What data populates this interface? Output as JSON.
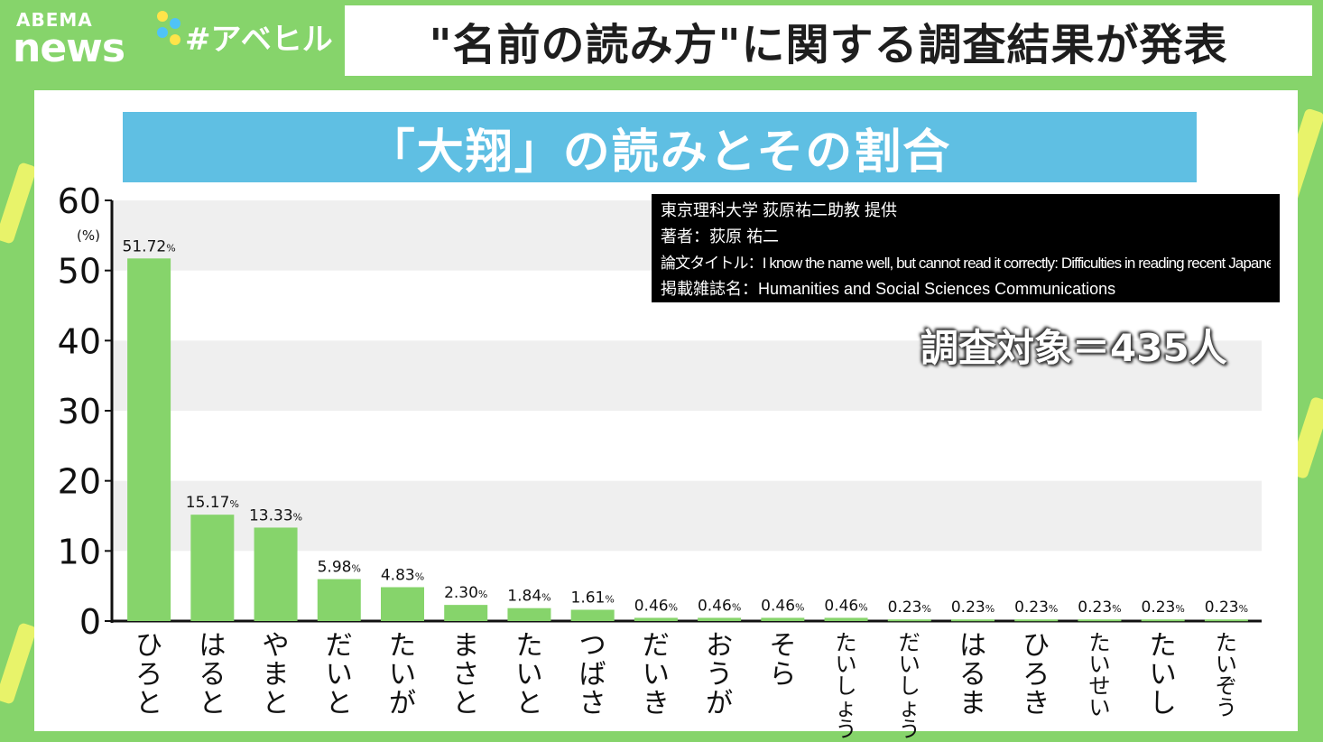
{
  "header": {
    "logo_top": "ABEMA",
    "logo_bottom": "news",
    "hashtag": "#アベヒル",
    "headline": "\"名前の読み方\"に関する調査結果が発表"
  },
  "colors": {
    "background": "#86d46b",
    "bar": "#86d46b",
    "title_bg": "#5fbfe3",
    "band": "#efefef"
  },
  "source_box": {
    "line1": "東京理科大学 荻原祐二助教 提供",
    "line2": "著者：荻原 祐二",
    "line3": "論文タイトル：I know the name well, but cannot read it correctly: Difficulties in reading recent Japanese names",
    "line4": "掲載雑誌名：Humanities and Social Sciences Communications"
  },
  "sample_note": "調査対象＝435人",
  "chart_data": {
    "type": "bar",
    "title": "「大翔」の読みとその割合",
    "xlabel": "",
    "ylabel": "(%)",
    "ylim": [
      0,
      60
    ],
    "yticks": [
      0,
      10,
      20,
      30,
      40,
      50,
      60
    ],
    "grid": "alternating horizontal bands",
    "categories": [
      "ひろと",
      "はると",
      "やまと",
      "だいと",
      "たいが",
      "まさと",
      "たいと",
      "つばさ",
      "だいき",
      "おうが",
      "そら",
      "たいしょう",
      "だいしょう",
      "はるま",
      "ひろき",
      "たいせい",
      "たいし",
      "たいぞう"
    ],
    "values": [
      51.72,
      15.17,
      13.33,
      5.98,
      4.83,
      2.3,
      1.84,
      1.61,
      0.46,
      0.46,
      0.46,
      0.46,
      0.23,
      0.23,
      0.23,
      0.23,
      0.23,
      0.23
    ],
    "value_labels": [
      "51.72",
      "15.17",
      "13.33",
      "5.98",
      "4.83",
      "2.30",
      "1.84",
      "1.61",
      "0.46",
      "0.46",
      "0.46",
      "0.46",
      "0.23",
      "0.23",
      "0.23",
      "0.23",
      "0.23",
      "0.23"
    ],
    "value_unit": "%"
  }
}
